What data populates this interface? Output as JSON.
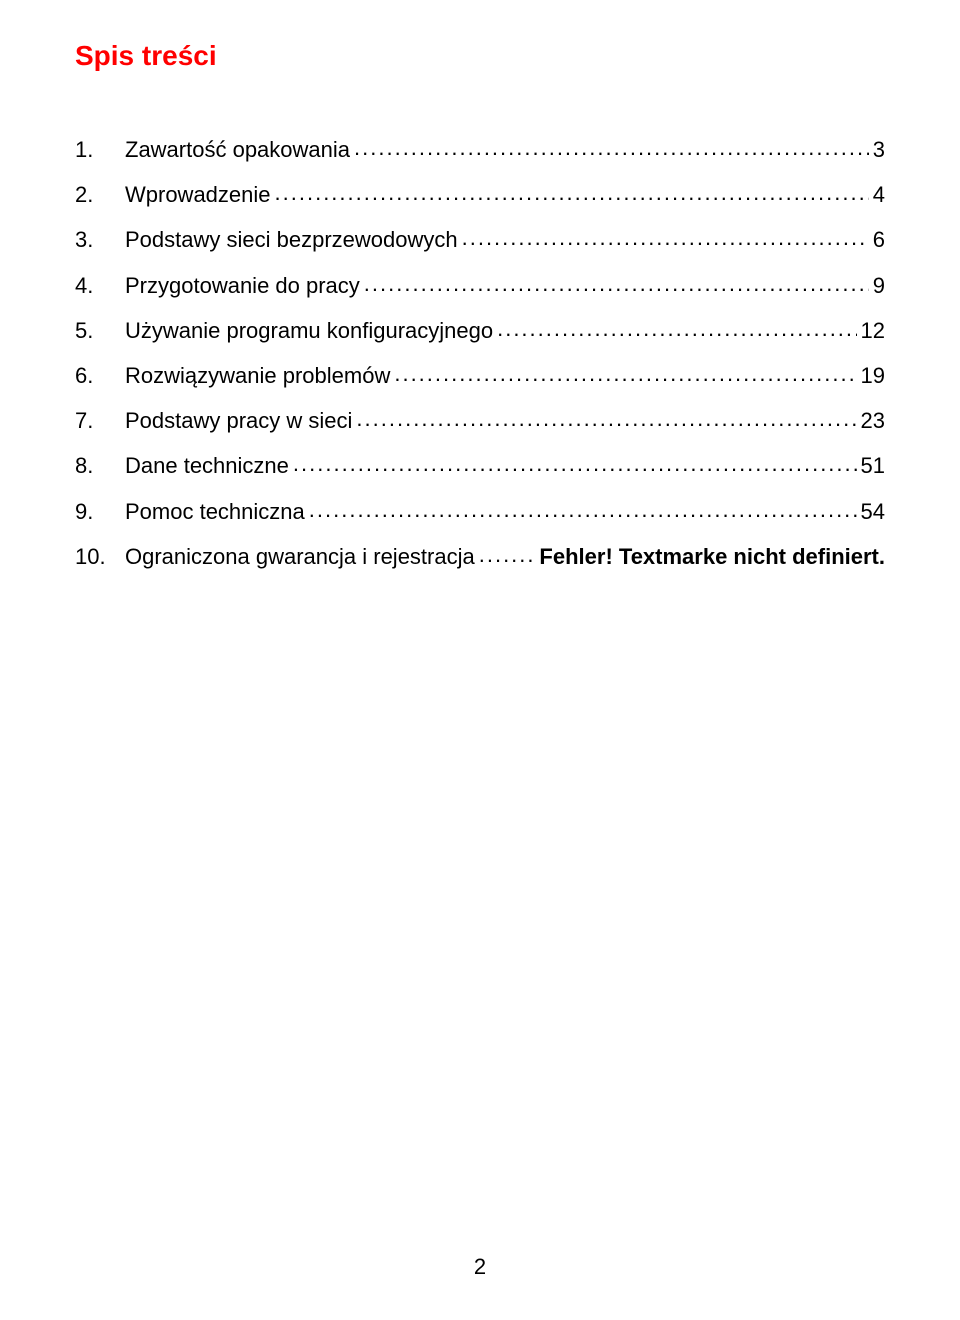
{
  "title": "Spis treści",
  "title_color": "#ff0000",
  "title_fontsize": 28,
  "body_fontsize": 22,
  "text_color": "#000000",
  "background_color": "#ffffff",
  "page_number": "2",
  "toc": [
    {
      "num": "1.",
      "label": "Zawartość opakowania",
      "page": "3",
      "bold_page": false
    },
    {
      "num": "2.",
      "label": "Wprowadzenie",
      "page": "4",
      "bold_page": false
    },
    {
      "num": "3.",
      "label": "Podstawy sieci bezprzewodowych",
      "page": "6",
      "bold_page": false
    },
    {
      "num": "4.",
      "label": "Przygotowanie do pracy",
      "page": "9",
      "bold_page": false
    },
    {
      "num": "5.",
      "label": "Używanie programu konfiguracyjnego",
      "page": "12",
      "bold_page": false
    },
    {
      "num": "6.",
      "label": "Rozwiązywanie problemów",
      "page": "19",
      "bold_page": false
    },
    {
      "num": "7.",
      "label": "Podstawy pracy w sieci",
      "page": "23",
      "bold_page": false
    },
    {
      "num": "8.",
      "label": "Dane techniczne",
      "page": "51",
      "bold_page": false
    },
    {
      "num": "9.",
      "label": "Pomoc techniczna",
      "page": "54",
      "bold_page": false
    },
    {
      "num": "10.",
      "label": "Ograniczona gwarancja i rejestracja",
      "page": "Fehler! Textmarke nicht definiert.",
      "bold_page": true
    }
  ]
}
